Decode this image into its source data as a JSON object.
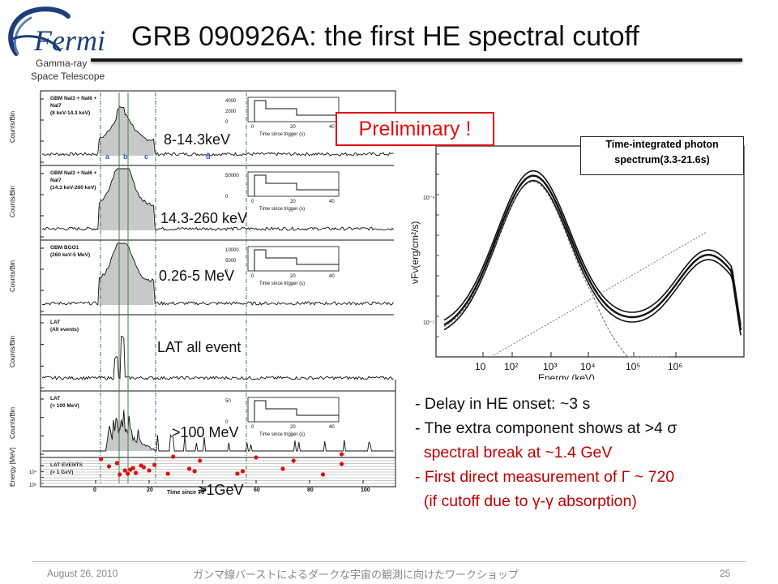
{
  "slide": {
    "title": "GRB 090926A: the first HE spectral cutoff",
    "logo": {
      "name": "Fermi",
      "sub_line1": "Gamma-ray",
      "sub_line2": "Space Telescope"
    },
    "preliminary": "Preliminary !"
  },
  "lightcurves": {
    "panels": [
      {
        "label": "8-14.3keV",
        "legend": [
          "GBM NaI3 + NaI6 +",
          "NaI7",
          "(8 keV-14.3 keV)"
        ],
        "inset_yticks": [
          "4000",
          "2000",
          "0"
        ],
        "inset_xticks": [
          "0",
          "20",
          "40"
        ],
        "inset_xlabel": "Time since trigger (s)"
      },
      {
        "label": "14.3-260 keV",
        "legend": [
          "GBM NaI3 + NaI6 +",
          "NaI7",
          "(14.3 keV-260 keV)"
        ],
        "inset_yticks": [
          "50000",
          "0"
        ],
        "inset_xticks": [
          "0",
          "20",
          "40"
        ],
        "inset_xlabel": "Time since trigger (s)"
      },
      {
        "label": "0.26-5 MeV",
        "legend": [
          "GBM BGO1",
          "(260 keV-5 MeV)"
        ],
        "inset_yticks": [
          "10000",
          "5000",
          "0"
        ],
        "inset_xticks": [
          "0",
          "20",
          "40"
        ],
        "inset_xlabel": "Time since trigger (s)"
      },
      {
        "label": "LAT all event",
        "legend": [
          "LAT",
          "(All events)"
        ]
      },
      {
        "label": ">100 MeV",
        "legend": [
          "LAT",
          "(> 100 MeV)"
        ],
        "inset_yticks": [
          "50",
          "0"
        ],
        "inset_xticks": [
          "0",
          "20",
          "40"
        ],
        "inset_xlabel": "Time since trigger (s)"
      },
      {
        "label": ">1GeV",
        "legend": [
          "LAT EVENTS",
          "(> 1 GeV)"
        ]
      }
    ],
    "ylabel_counts": "Counts/Bin",
    "ylabel_energy": "Energy [MeV]",
    "interval_letters": [
      "a",
      "b",
      "c",
      "d"
    ],
    "xlabel": "Time since T0",
    "xticks": [
      "0",
      "20",
      "40",
      "60",
      "80",
      "100"
    ],
    "energy_yticks": [
      "10⁴",
      "10³"
    ]
  },
  "spectrum": {
    "box_line1": "Time-integrated photon",
    "box_line2": "spectrum(3.3-21.6s)",
    "ylabel": "νFν(erg/cm²/s)",
    "y_tick_1": "10⁻⁶",
    "y_tick_2": "10⁻⁷",
    "xlabel": "Energy (keV)",
    "xticks": [
      "10",
      "10²",
      "10³",
      "10⁴",
      "10⁵",
      "10⁶"
    ]
  },
  "bullets": [
    {
      "text": "- Delay in HE onset: ~3 s",
      "color": "#111111"
    },
    {
      "text": "- The extra component shows at >4 σ",
      "color": "#111111"
    },
    {
      "text": "  spectral break at ~1.4 GeV",
      "color": "#c00000"
    },
    {
      "text": "- First direct measurement of  Γ ~ 720",
      "color": "#c00000"
    },
    {
      "text": "  (if cutoff due to γ-γ absorption)",
      "color": "#c00000"
    }
  ],
  "footer": {
    "date": "August 26, 2010",
    "workshop": "ガンマ線バーストによるダークな宇宙の観測に向けたワークショップ",
    "page": "25"
  },
  "colors": {
    "accent": "#e01010",
    "highlight_text": "#c00000",
    "logo_blue": "#1c3f7a",
    "hist_fill": "#c8c8c8",
    "event_dot": "#e01010",
    "guide_green": "#2e8b2e"
  }
}
